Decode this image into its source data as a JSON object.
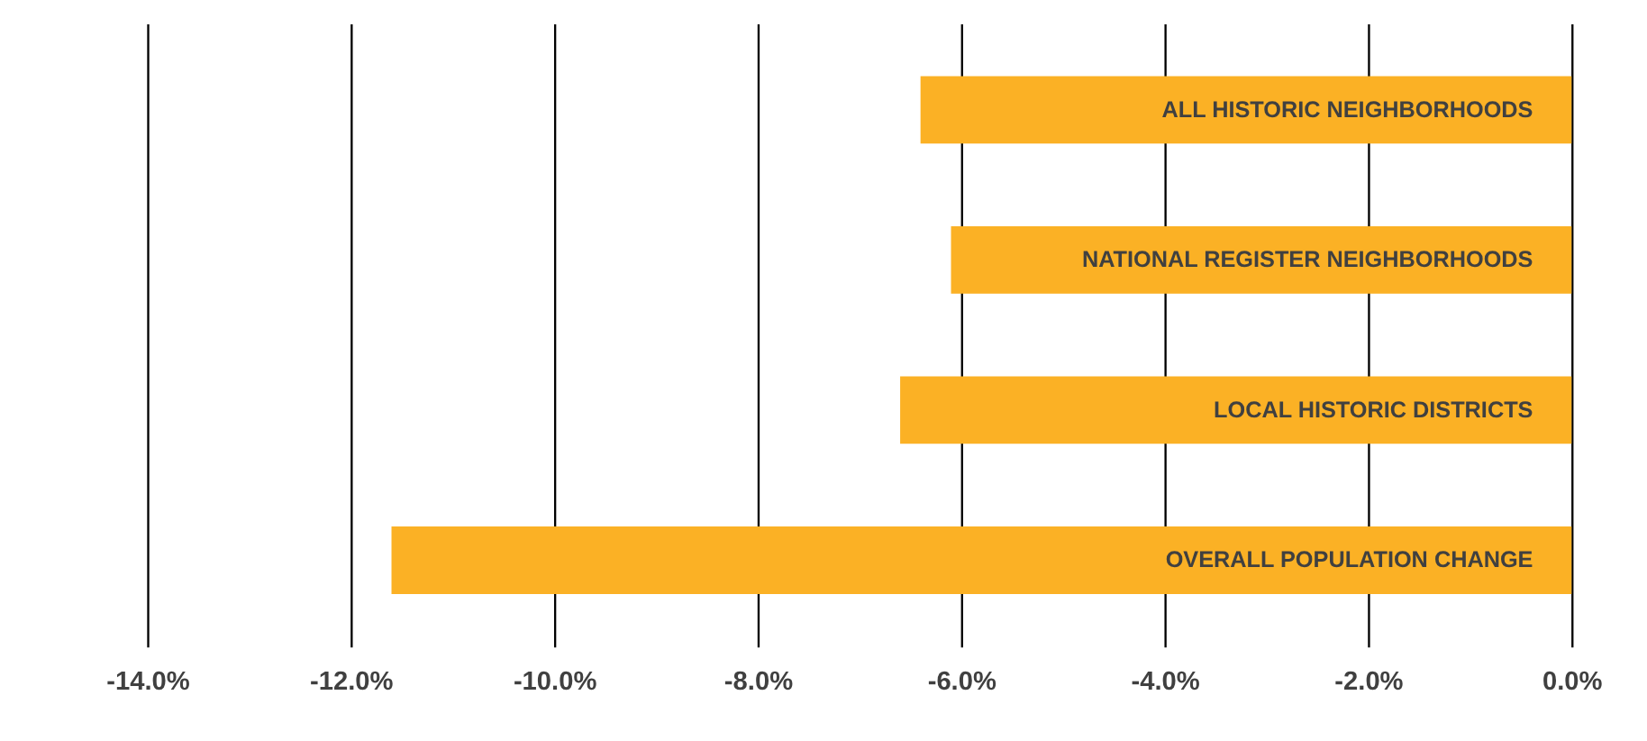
{
  "chart_data": {
    "type": "bar",
    "orientation": "horizontal",
    "categories": [
      "ALL HISTORIC NEIGHBORHOODS",
      "NATIONAL REGISTER NEIGHBORHOODS",
      "LOCAL HISTORIC DISTRICTS",
      "OVERALL POPULATION CHANGE"
    ],
    "values": [
      -6.4,
      -6.1,
      -6.6,
      -11.6
    ],
    "color": "#fbb125",
    "xlim": [
      -14,
      0
    ],
    "xticks": [
      {
        "value": -14,
        "label": "-14.0%"
      },
      {
        "value": -12,
        "label": "-12.0%"
      },
      {
        "value": -10,
        "label": "-10.0%"
      },
      {
        "value": -8,
        "label": "-8.0%"
      },
      {
        "value": -6,
        "label": "-6.0%"
      },
      {
        "value": -4,
        "label": "-4.0%"
      },
      {
        "value": -2,
        "label": "-2.0%"
      },
      {
        "value": 0,
        "label": "0.0%"
      }
    ],
    "grid": "x",
    "tick_labels": "x"
  }
}
